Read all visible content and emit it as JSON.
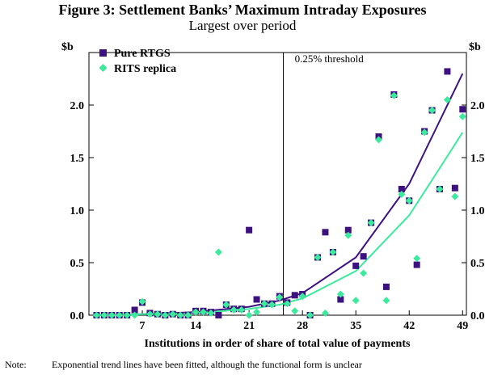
{
  "chart_data": {
    "type": "scatter",
    "title": "Figure 3: Settlement Banks’ Maximum Intraday Exposures",
    "subtitle": "Largest over period",
    "xlabel": "Institutions in order of share of total value of payments",
    "ylabel_left": "$b",
    "ylabel_right": "$b",
    "xlim": [
      0,
      49.5
    ],
    "ylim": [
      0,
      2.5
    ],
    "xticks": [
      7,
      14,
      21,
      28,
      35,
      42,
      49
    ],
    "yticks": [
      0.0,
      0.5,
      1.0,
      1.5,
      2.0
    ],
    "ytick_labels": [
      "0.0",
      "0.5",
      "1.0",
      "1.5",
      "2.0"
    ],
    "threshold": {
      "x": 25.5,
      "label": "0.25% threshold"
    },
    "legend_position": "top-left",
    "colors": {
      "pure_rtgs": "#3d1280",
      "rits_replica": "#3bea9c"
    },
    "series": [
      {
        "name": "Pure RTGS",
        "marker": "square",
        "x": [
          1,
          2,
          3,
          4,
          5,
          6,
          7,
          8,
          9,
          10,
          11,
          12,
          13,
          14,
          15,
          16,
          17,
          18,
          19,
          20,
          21,
          22,
          23,
          24,
          25,
          26,
          27,
          28,
          29,
          30,
          31,
          32,
          33,
          34,
          35,
          36,
          37,
          38,
          39,
          40,
          41,
          42,
          43,
          44,
          45,
          46,
          47,
          48,
          49
        ],
        "values": [
          0.0,
          0.0,
          0.0,
          0.0,
          0.0,
          0.05,
          0.12,
          0.02,
          0.01,
          0.0,
          0.01,
          0.0,
          0.0,
          0.04,
          0.04,
          0.03,
          0.0,
          0.1,
          0.06,
          0.06,
          0.81,
          0.15,
          0.11,
          0.11,
          0.18,
          0.12,
          0.19,
          0.2,
          0.0,
          0.55,
          0.79,
          0.6,
          0.15,
          0.81,
          0.47,
          0.56,
          0.88,
          1.7,
          0.27,
          2.1,
          1.2,
          1.09,
          0.48,
          1.75,
          1.95,
          1.2,
          2.32,
          1.21,
          1.96
        ]
      },
      {
        "name": "RITS replica",
        "marker": "diamond",
        "x": [
          1,
          2,
          3,
          4,
          5,
          6,
          7,
          8,
          9,
          10,
          11,
          12,
          13,
          14,
          15,
          16,
          17,
          18,
          19,
          20,
          21,
          22,
          23,
          24,
          25,
          26,
          27,
          28,
          29,
          30,
          31,
          32,
          33,
          34,
          35,
          36,
          37,
          38,
          39,
          40,
          41,
          42,
          43,
          44,
          45,
          46,
          47,
          48,
          49
        ],
        "values": [
          0.0,
          0.0,
          0.0,
          0.0,
          0.0,
          0.0,
          0.13,
          0.01,
          0.01,
          0.0,
          0.01,
          0.0,
          0.0,
          0.03,
          0.03,
          0.02,
          0.6,
          0.1,
          0.05,
          0.05,
          0.0,
          0.03,
          0.11,
          0.1,
          0.17,
          0.11,
          0.04,
          0.18,
          0.0,
          0.55,
          0.02,
          0.6,
          0.2,
          0.76,
          0.14,
          0.4,
          0.88,
          1.67,
          0.14,
          2.09,
          1.15,
          1.09,
          0.54,
          1.74,
          1.95,
          1.2,
          2.05,
          1.13,
          1.89
        ]
      },
      {
        "name": "Pure RTGS trend",
        "type": "line",
        "x": [
          1,
          7,
          14,
          21,
          25,
          28,
          35,
          42,
          46,
          49
        ],
        "values": [
          0.0,
          0.01,
          0.03,
          0.08,
          0.14,
          0.21,
          0.55,
          1.25,
          1.85,
          2.3
        ]
      },
      {
        "name": "RITS replica trend",
        "type": "line",
        "x": [
          1,
          7,
          14,
          21,
          25,
          28,
          35,
          42,
          46,
          49
        ],
        "values": [
          0.0,
          0.01,
          0.02,
          0.06,
          0.1,
          0.16,
          0.42,
          0.95,
          1.4,
          1.74
        ]
      }
    ]
  },
  "note": {
    "label": "Note:",
    "text": "Exponential trend lines have been fitted, although the functional form is unclear"
  }
}
